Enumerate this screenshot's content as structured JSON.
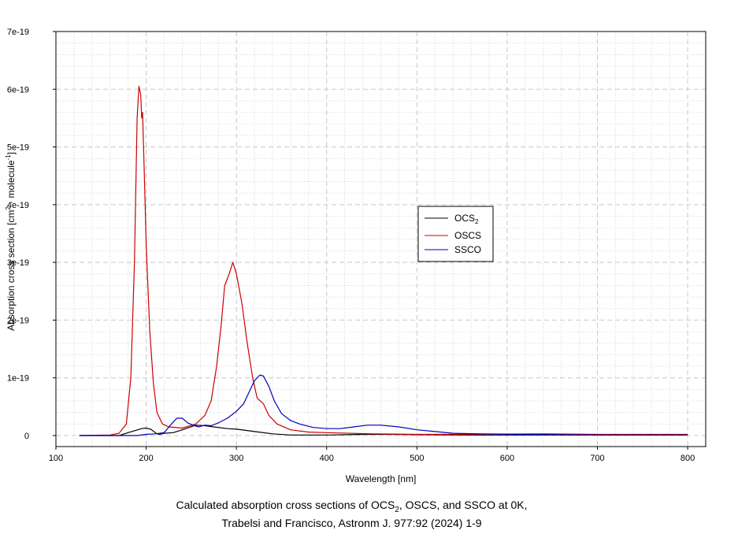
{
  "chart_data": {
    "type": "line",
    "xlabel": "Wavelength [nm]",
    "ylabel_parts": [
      "Absorption cross section [cm",
      "2",
      " · molecule",
      "-1",
      "]"
    ],
    "xlim": [
      100,
      820
    ],
    "ylim": [
      0,
      7e-19
    ],
    "x_ticks": [
      100,
      200,
      300,
      400,
      500,
      600,
      700,
      800
    ],
    "y_ticks": [
      0,
      1e-19,
      2e-19,
      3e-19,
      4e-19,
      5e-19,
      6e-19,
      7e-19
    ],
    "y_tick_labels": [
      "0",
      "1e-19",
      "2e-19",
      "3e-19",
      "4e-19",
      "5e-19",
      "6e-19",
      "7e-19"
    ],
    "grid": true,
    "legend_position": "right-center",
    "series": [
      {
        "name": "OCS",
        "name_sub": "2",
        "color": "#000000",
        "points": [
          [
            126,
            0
          ],
          [
            170,
            0
          ],
          [
            180,
            5e-21
          ],
          [
            195,
            1.2e-20
          ],
          [
            200,
            1.3e-20
          ],
          [
            205,
            1.1e-20
          ],
          [
            212,
            3e-21
          ],
          [
            215,
            2e-21
          ],
          [
            220,
            4e-21
          ],
          [
            230,
            5e-21
          ],
          [
            240,
            1e-20
          ],
          [
            255,
            1.8e-20
          ],
          [
            265,
            1.7e-20
          ],
          [
            275,
            1.5e-20
          ],
          [
            290,
            1.2e-20
          ],
          [
            300,
            1.1e-20
          ],
          [
            320,
            7e-21
          ],
          [
            340,
            3e-21
          ],
          [
            360,
            1e-21
          ],
          [
            400,
            1e-21
          ],
          [
            440,
            2e-21
          ],
          [
            470,
            2e-21
          ],
          [
            500,
            1.5e-21
          ],
          [
            550,
            1e-21
          ],
          [
            600,
            1e-21
          ],
          [
            800,
            1e-21
          ]
        ]
      },
      {
        "name": "OSCS",
        "color": "#cc0000",
        "points": [
          [
            126,
            0
          ],
          [
            160,
            1e-21
          ],
          [
            170,
            4e-21
          ],
          [
            178,
            2e-20
          ],
          [
            183,
            1e-19
          ],
          [
            187,
            3e-19
          ],
          [
            190,
            5.5e-19
          ],
          [
            192,
            6.05e-19
          ],
          [
            194,
            5.9e-19
          ],
          [
            195,
            5.5e-19
          ],
          [
            196,
            5.6e-19
          ],
          [
            198,
            4.5e-19
          ],
          [
            200,
            3.3e-19
          ],
          [
            204,
            1.8e-19
          ],
          [
            208,
            9e-20
          ],
          [
            212,
            4e-20
          ],
          [
            218,
            2e-20
          ],
          [
            225,
            1.5e-20
          ],
          [
            240,
            1.3e-20
          ],
          [
            255,
            2e-20
          ],
          [
            265,
            3.5e-20
          ],
          [
            272,
            6e-20
          ],
          [
            278,
            1.2e-19
          ],
          [
            283,
            1.9e-19
          ],
          [
            287,
            2.6e-19
          ],
          [
            292,
            2.8e-19
          ],
          [
            296,
            3e-19
          ],
          [
            300,
            2.8e-19
          ],
          [
            306,
            2.3e-19
          ],
          [
            312,
            1.6e-19
          ],
          [
            318,
            1e-19
          ],
          [
            323,
            6.5e-20
          ],
          [
            330,
            5.5e-20
          ],
          [
            336,
            3.5e-20
          ],
          [
            345,
            2e-20
          ],
          [
            360,
            1e-20
          ],
          [
            380,
            6e-21
          ],
          [
            400,
            5e-21
          ],
          [
            450,
            3e-21
          ],
          [
            500,
            2e-21
          ],
          [
            540,
            2e-21
          ],
          [
            590,
            2.5e-21
          ],
          [
            640,
            3e-21
          ],
          [
            700,
            2e-21
          ],
          [
            800,
            2e-21
          ]
        ]
      },
      {
        "name": "SSCO",
        "color": "#0000bb",
        "points": [
          [
            126,
            0
          ],
          [
            190,
            0
          ],
          [
            200,
            2e-21
          ],
          [
            210,
            3e-21
          ],
          [
            220,
            5e-21
          ],
          [
            228,
            2e-20
          ],
          [
            234,
            3e-20
          ],
          [
            240,
            3e-20
          ],
          [
            246,
            2.2e-20
          ],
          [
            252,
            1.8e-20
          ],
          [
            258,
            1.5e-20
          ],
          [
            265,
            1.8e-20
          ],
          [
            272,
            1.7e-20
          ],
          [
            280,
            2.2e-20
          ],
          [
            290,
            3e-20
          ],
          [
            300,
            4.2e-20
          ],
          [
            308,
            5.5e-20
          ],
          [
            314,
            7.5e-20
          ],
          [
            320,
            9.5e-20
          ],
          [
            326,
            1.05e-19
          ],
          [
            330,
            1.03e-19
          ],
          [
            336,
            8.5e-20
          ],
          [
            342,
            6e-20
          ],
          [
            350,
            3.8e-20
          ],
          [
            360,
            2.6e-20
          ],
          [
            370,
            2e-20
          ],
          [
            385,
            1.4e-20
          ],
          [
            400,
            1.2e-20
          ],
          [
            415,
            1.2e-20
          ],
          [
            430,
            1.5e-20
          ],
          [
            445,
            1.8e-20
          ],
          [
            460,
            1.8e-20
          ],
          [
            480,
            1.5e-20
          ],
          [
            500,
            1e-20
          ],
          [
            520,
            7e-21
          ],
          [
            540,
            4e-21
          ],
          [
            570,
            3e-21
          ],
          [
            620,
            2e-21
          ],
          [
            700,
            1e-21
          ],
          [
            800,
            1e-21
          ]
        ]
      }
    ]
  },
  "caption": {
    "line1_parts": [
      "Calculated absorption cross sections of OCS",
      "2",
      ", OSCS, and SSCO at 0K,"
    ],
    "line2": "Trabelsi and Francisco, Astronm J. 977:92 (2024) 1-9"
  }
}
